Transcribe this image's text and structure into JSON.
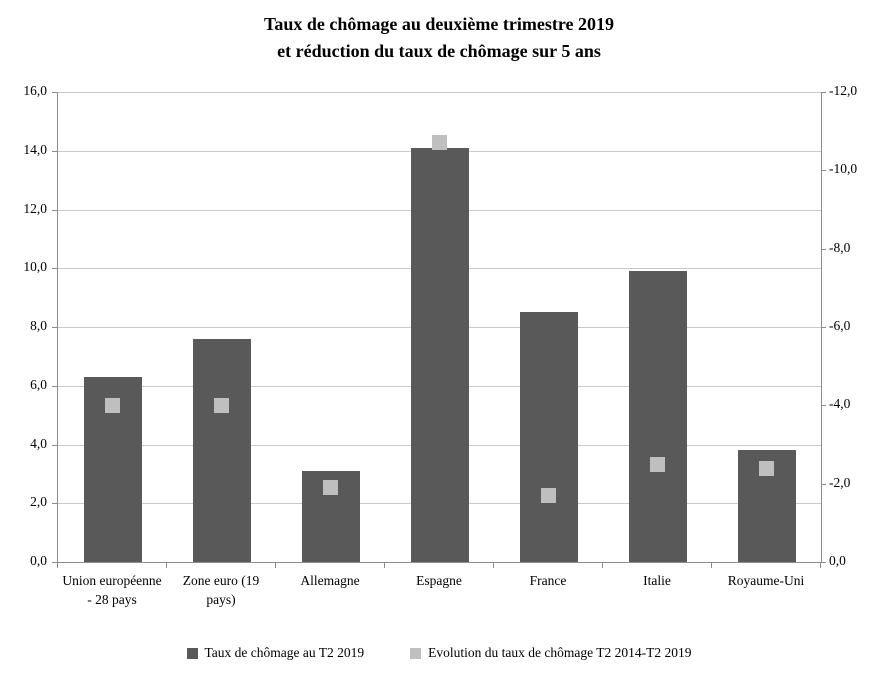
{
  "title": {
    "line1": "Taux de chômage au deuxième trimestre 2019",
    "line2": "et réduction du taux de chômage sur 5 ans"
  },
  "chart_data": {
    "type": "bar",
    "categories": [
      "Union européenne - 28 pays",
      "Zone euro (19 pays)",
      "Allemagne",
      "Espagne",
      "France",
      "Italie",
      "Royaume-Uni"
    ],
    "series": [
      {
        "name": "Taux de chômage au T2 2019",
        "type": "bar",
        "axis": "left",
        "color": "#595959",
        "values": [
          6.3,
          7.6,
          3.1,
          14.1,
          8.5,
          9.9,
          3.8
        ]
      },
      {
        "name": "Evolution du taux de chômage T2 2014-T2 2019",
        "type": "square_marker",
        "axis": "right",
        "color": "#bfbfbf",
        "values": [
          -4.0,
          -4.0,
          -1.9,
          -10.7,
          -1.7,
          -2.5,
          -2.4
        ]
      }
    ],
    "left_axis": {
      "min": 0,
      "max": 16,
      "step": 2,
      "tick_labels_top_to_bottom": [
        "16,0",
        "14,0",
        "12,0",
        "10,0",
        "8,0",
        "6,0",
        "4,0",
        "2,0",
        "0,0"
      ]
    },
    "right_axis": {
      "min": -12,
      "max": 0,
      "step": 2,
      "tick_labels_top_to_bottom": [
        "-12,0",
        "-10,0",
        "-8,0",
        "-6,0",
        "-4,0",
        "-2,0",
        "0,0"
      ]
    },
    "grid": "horizontal",
    "legend_position": "bottom",
    "colors": {
      "grid": "#c9c9c9",
      "axis": "#8c8c8c",
      "text": "#000000",
      "background": "#ffffff"
    }
  }
}
